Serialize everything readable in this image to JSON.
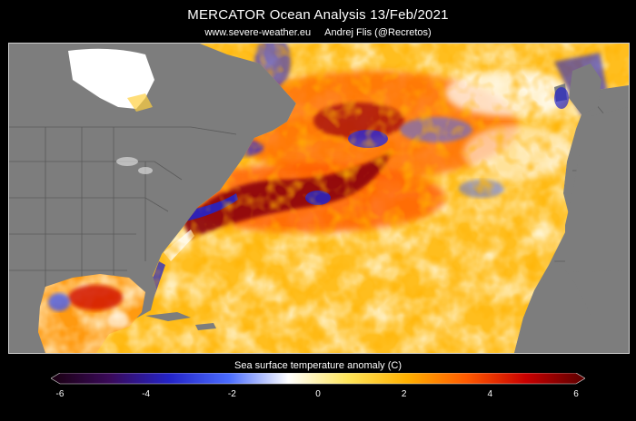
{
  "header": {
    "title": "MERCATOR Ocean Analysis  13/Feb/2021",
    "source": "www.severe-weather.eu",
    "author": "Andrej Flis (@Recretos)"
  },
  "colorbar": {
    "label": "Sea surface temperature anomaly (C)",
    "min": -6,
    "max": 6,
    "ticks": [
      "-6",
      "-4",
      "-2",
      "0",
      "2",
      "4",
      "6"
    ],
    "stops": [
      "#1a0010",
      "#3a0a5a",
      "#2424c8",
      "#4a6cff",
      "#ffffff",
      "#ffe55a",
      "#ffb000",
      "#ff5a00",
      "#c80000",
      "#5a0000"
    ]
  },
  "colors": {
    "land": "#7d7d7d",
    "ocean_base": "#ffbe1e",
    "warm_core": "#ff5a00",
    "hot": "#7a0008",
    "cold": "#2a2ad8",
    "sea_ice": "#ffffff",
    "borders": "#5a5a5a"
  }
}
